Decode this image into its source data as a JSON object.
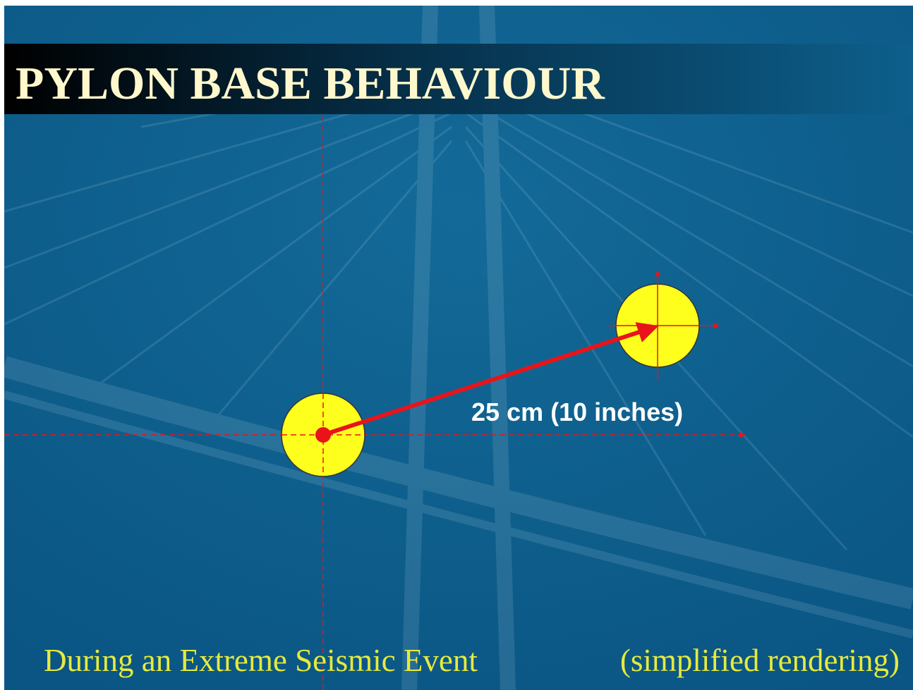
{
  "header": {
    "title": "PYLON BASE BEHAVIOUR"
  },
  "diagram": {
    "displacement_label": "25 cm (10 inches)"
  },
  "footer": {
    "left": "During an Extreme Seismic Event",
    "right": "(simplified rendering)"
  }
}
